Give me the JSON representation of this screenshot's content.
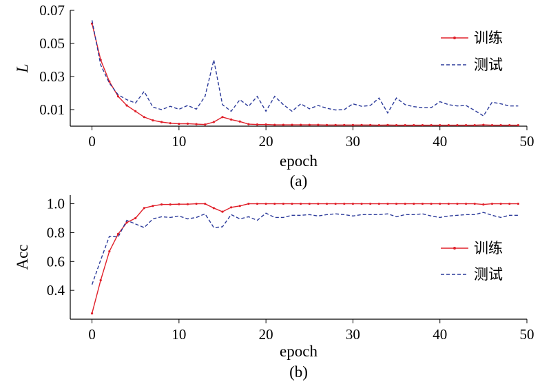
{
  "chart_data": [
    {
      "type": "line",
      "caption": "(a)",
      "xlabel": "epoch",
      "ylabel": "L",
      "ylabel_italic": true,
      "xlim": [
        -2.5,
        50
      ],
      "ylim": [
        0,
        0.07
      ],
      "xticks": [
        0,
        10,
        20,
        30,
        40,
        50
      ],
      "yticks": [
        0.01,
        0.03,
        0.05,
        0.07
      ],
      "ytick_decimals": 2,
      "grid": false,
      "legend_position": "top-right",
      "series": [
        {
          "name": "训练",
          "color": "#e0202a",
          "style": "solid-marker",
          "x": [
            0,
            1,
            2,
            3,
            4,
            5,
            6,
            7,
            8,
            9,
            10,
            11,
            12,
            13,
            14,
            15,
            16,
            17,
            18,
            19,
            20,
            21,
            22,
            23,
            24,
            25,
            26,
            27,
            28,
            29,
            30,
            31,
            32,
            33,
            34,
            35,
            36,
            37,
            38,
            39,
            40,
            41,
            42,
            43,
            44,
            45,
            46,
            47,
            48,
            49
          ],
          "values": [
            0.062,
            0.04,
            0.027,
            0.018,
            0.0125,
            0.009,
            0.0055,
            0.0035,
            0.0025,
            0.0018,
            0.0014,
            0.0015,
            0.0012,
            0.001,
            0.0025,
            0.0055,
            0.004,
            0.0028,
            0.0012,
            0.001,
            0.001,
            0.0008,
            0.0008,
            0.0008,
            0.0008,
            0.0008,
            0.0008,
            0.0007,
            0.0007,
            0.0007,
            0.0007,
            0.0007,
            0.0007,
            0.0006,
            0.0007,
            0.0006,
            0.0006,
            0.0006,
            0.0006,
            0.0006,
            0.0006,
            0.0006,
            0.0006,
            0.0006,
            0.0006,
            0.0008,
            0.0006,
            0.0006,
            0.0006,
            0.0006
          ]
        },
        {
          "name": "测试",
          "color": "#2b3a9a",
          "style": "dashed",
          "x": [
            0,
            1,
            2,
            3,
            4,
            5,
            6,
            7,
            8,
            9,
            10,
            11,
            12,
            13,
            14,
            15,
            16,
            17,
            18,
            19,
            20,
            21,
            22,
            23,
            24,
            25,
            26,
            27,
            28,
            29,
            30,
            31,
            32,
            33,
            34,
            35,
            36,
            37,
            38,
            39,
            40,
            41,
            42,
            43,
            44,
            45,
            46,
            47,
            48,
            49
          ],
          "values": [
            0.064,
            0.037,
            0.026,
            0.019,
            0.016,
            0.014,
            0.021,
            0.0115,
            0.01,
            0.012,
            0.0102,
            0.0125,
            0.0103,
            0.018,
            0.04,
            0.013,
            0.009,
            0.016,
            0.012,
            0.018,
            0.009,
            0.018,
            0.013,
            0.009,
            0.0135,
            0.0105,
            0.0125,
            0.0108,
            0.0098,
            0.01,
            0.0135,
            0.012,
            0.0125,
            0.017,
            0.008,
            0.017,
            0.013,
            0.0118,
            0.0112,
            0.0112,
            0.0148,
            0.013,
            0.0122,
            0.0125,
            0.0095,
            0.0062,
            0.0145,
            0.0135,
            0.0122,
            0.0122
          ]
        }
      ]
    },
    {
      "type": "line",
      "caption": "(b)",
      "xlabel": "epoch",
      "ylabel": "Acc",
      "ylabel_italic": false,
      "xlim": [
        -2.5,
        50
      ],
      "ylim": [
        0.2,
        1.06
      ],
      "xticks": [
        0,
        10,
        20,
        30,
        40,
        50
      ],
      "yticks": [
        0.4,
        0.6,
        0.8,
        1.0
      ],
      "ytick_decimals": 1,
      "grid": false,
      "legend_position": "right",
      "series": [
        {
          "name": "训练",
          "color": "#e0202a",
          "style": "solid-marker",
          "x": [
            0,
            1,
            2,
            3,
            4,
            5,
            6,
            7,
            8,
            9,
            10,
            11,
            12,
            13,
            14,
            15,
            16,
            17,
            18,
            19,
            20,
            21,
            22,
            23,
            24,
            25,
            26,
            27,
            28,
            29,
            30,
            31,
            32,
            33,
            34,
            35,
            36,
            37,
            38,
            39,
            40,
            41,
            42,
            43,
            44,
            45,
            46,
            47,
            48,
            49
          ],
          "values": [
            0.24,
            0.47,
            0.67,
            0.79,
            0.87,
            0.9,
            0.97,
            0.985,
            0.995,
            0.995,
            0.997,
            0.997,
            1.0,
            1.0,
            0.97,
            0.945,
            0.975,
            0.985,
            1.0,
            1.0,
            1.0,
            1.0,
            1.0,
            1.0,
            1.0,
            1.0,
            1.0,
            1.0,
            1.0,
            1.0,
            1.0,
            1.0,
            1.0,
            1.0,
            1.0,
            1.0,
            1.0,
            1.0,
            1.0,
            1.0,
            1.0,
            1.0,
            1.0,
            1.0,
            1.0,
            0.995,
            1.0,
            1.0,
            1.0,
            1.0
          ]
        },
        {
          "name": "测试",
          "color": "#2b3a9a",
          "style": "dashed",
          "x": [
            0,
            1,
            2,
            3,
            4,
            5,
            6,
            7,
            8,
            9,
            10,
            11,
            12,
            13,
            14,
            15,
            16,
            17,
            18,
            19,
            20,
            21,
            22,
            23,
            24,
            25,
            26,
            27,
            28,
            29,
            30,
            31,
            32,
            33,
            34,
            35,
            36,
            37,
            38,
            39,
            40,
            41,
            42,
            43,
            44,
            45,
            46,
            47,
            48,
            49
          ],
          "values": [
            0.44,
            0.61,
            0.775,
            0.77,
            0.885,
            0.86,
            0.835,
            0.895,
            0.91,
            0.905,
            0.915,
            0.895,
            0.905,
            0.93,
            0.835,
            0.84,
            0.925,
            0.895,
            0.91,
            0.885,
            0.935,
            0.905,
            0.905,
            0.92,
            0.92,
            0.925,
            0.915,
            0.925,
            0.93,
            0.925,
            0.915,
            0.925,
            0.925,
            0.925,
            0.93,
            0.91,
            0.925,
            0.925,
            0.93,
            0.915,
            0.905,
            0.915,
            0.92,
            0.925,
            0.925,
            0.94,
            0.92,
            0.905,
            0.92,
            0.92
          ]
        }
      ]
    }
  ]
}
